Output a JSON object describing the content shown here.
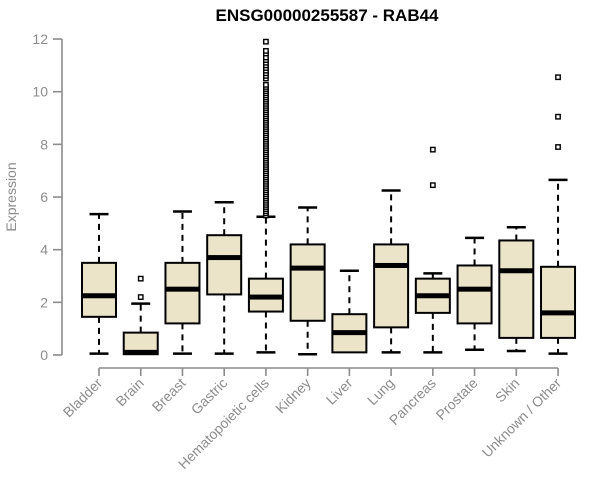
{
  "chart_data": {
    "type": "box",
    "title": "ENSG00000255587 - RAB44",
    "ylabel": "Expression",
    "xlabel": "",
    "ylim": [
      0,
      12
    ],
    "yticks": [
      0,
      2,
      4,
      6,
      8,
      10,
      12
    ],
    "grid": false,
    "legend_position": "none",
    "categories": [
      "Bladder",
      "Brain",
      "Breast",
      "Gastric",
      "Hematopoietic cells",
      "Kidney",
      "Liver",
      "Lung",
      "Pancreas",
      "Prostate",
      "Skin",
      "Unknown / Other"
    ],
    "series": [
      {
        "label": "Bladder",
        "whisker_low": 0.05,
        "q1": 1.45,
        "median": 2.25,
        "q3": 3.5,
        "whisker_high": 5.35,
        "outliers": []
      },
      {
        "label": "Brain",
        "whisker_low": 0.03,
        "q1": 0.03,
        "median": 0.1,
        "q3": 0.85,
        "whisker_high": 1.95,
        "outliers": [
          2.2,
          2.9
        ]
      },
      {
        "label": "Breast",
        "whisker_low": 0.05,
        "q1": 1.2,
        "median": 2.5,
        "q3": 3.5,
        "whisker_high": 5.45,
        "outliers": []
      },
      {
        "label": "Gastric",
        "whisker_low": 0.05,
        "q1": 2.3,
        "median": 3.7,
        "q3": 4.55,
        "whisker_high": 5.8,
        "outliers": []
      },
      {
        "label": "Hematopoietic cells",
        "whisker_low": 0.1,
        "q1": 1.65,
        "median": 2.2,
        "q3": 2.9,
        "whisker_high": 5.25,
        "outliers": [
          5.3,
          5.38,
          5.46,
          5.54,
          5.62,
          5.7,
          5.78,
          5.86,
          5.94,
          6.02,
          6.1,
          6.18,
          6.26,
          6.34,
          6.42,
          6.5,
          6.58,
          6.66,
          6.74,
          6.82,
          6.9,
          6.98,
          7.06,
          7.14,
          7.22,
          7.3,
          7.38,
          7.46,
          7.54,
          7.62,
          7.7,
          7.78,
          7.86,
          7.94,
          8.02,
          8.1,
          8.18,
          8.26,
          8.34,
          8.42,
          8.5,
          8.58,
          8.66,
          8.74,
          8.82,
          8.9,
          8.98,
          9.06,
          9.14,
          9.22,
          9.3,
          9.38,
          9.46,
          9.54,
          9.62,
          9.7,
          9.78,
          9.86,
          9.94,
          10.02,
          10.1,
          10.18,
          10.26,
          10.5,
          10.6,
          10.7,
          10.8,
          10.9,
          11.0,
          11.1,
          11.2,
          11.3,
          11.45,
          11.55,
          11.9
        ]
      },
      {
        "label": "Kidney",
        "whisker_low": 0.03,
        "q1": 1.3,
        "median": 3.3,
        "q3": 4.2,
        "whisker_high": 5.6,
        "outliers": []
      },
      {
        "label": "Liver",
        "whisker_low": 0.1,
        "q1": 0.1,
        "median": 0.85,
        "q3": 1.55,
        "whisker_high": 3.2,
        "outliers": []
      },
      {
        "label": "Lung",
        "whisker_low": 0.1,
        "q1": 1.05,
        "median": 3.4,
        "q3": 4.2,
        "whisker_high": 6.25,
        "outliers": []
      },
      {
        "label": "Pancreas",
        "whisker_low": 0.1,
        "q1": 1.6,
        "median": 2.25,
        "q3": 2.9,
        "whisker_high": 3.1,
        "outliers": [
          6.45,
          7.8
        ]
      },
      {
        "label": "Prostate",
        "whisker_low": 0.2,
        "q1": 1.2,
        "median": 2.5,
        "q3": 3.4,
        "whisker_high": 4.45,
        "outliers": []
      },
      {
        "label": "Skin",
        "whisker_low": 0.15,
        "q1": 0.65,
        "median": 3.2,
        "q3": 4.35,
        "whisker_high": 4.85,
        "outliers": []
      },
      {
        "label": "Unknown / Other",
        "whisker_low": 0.05,
        "q1": 0.65,
        "median": 1.6,
        "q3": 3.35,
        "whisker_high": 6.65,
        "outliers": [
          7.9,
          9.05,
          10.55
        ]
      }
    ],
    "colors": {
      "box_fill": "#EBE4C9",
      "box_stroke": "#000000",
      "median": "#000000",
      "outlier_fill": "#FFFFFF",
      "axis": "#8C8C8C",
      "title": "#000000"
    }
  }
}
